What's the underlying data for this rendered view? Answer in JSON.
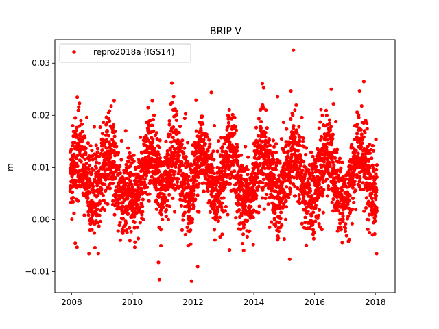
{
  "chart_data": {
    "type": "scatter",
    "title": "BRIP V",
    "xlabel": "",
    "ylabel": "m",
    "xlim": [
      2007.45,
      2018.65
    ],
    "ylim": [
      -0.014,
      0.0345
    ],
    "x_ticks": [
      2008,
      2010,
      2012,
      2014,
      2016,
      2018
    ],
    "x_tick_labels": [
      "2008",
      "2010",
      "2012",
      "2014",
      "2016",
      "2018"
    ],
    "y_ticks": [
      -0.01,
      0.0,
      0.01,
      0.02,
      0.03
    ],
    "y_tick_labels": [
      "−0.01",
      "0.00",
      "0.01",
      "0.02",
      "0.03"
    ],
    "legend": {
      "position": "top-left",
      "entries": [
        "repro2018a (IGS14)"
      ]
    },
    "grid": false,
    "series": [
      {
        "name": "repro2018a (IGS14)",
        "color": "#ff0000",
        "marker": "dot",
        "x_range": [
          2007.95,
          2018.05
        ],
        "annual_mean_pattern": {
          "peak_times": [
            2009.2,
            2010.6,
            2011.4,
            2012.3,
            2013.2,
            2014.3,
            2015.3,
            2016.4,
            2017.5
          ],
          "mean_level": 0.0085,
          "annual_amplitude": 0.004
        },
        "points": [
          [
            2008.01,
            0.0001
          ],
          [
            2008.03,
            0.0123
          ],
          [
            2008.05,
            0.0042
          ],
          [
            2008.08,
            0.0012
          ],
          [
            2008.12,
            -0.0045
          ],
          [
            2008.15,
            0.0062
          ],
          [
            2008.18,
            -0.0053
          ],
          [
            2008.22,
            0.0085
          ],
          [
            2008.26,
            0.0223
          ],
          [
            2008.3,
            0.014
          ],
          [
            2008.35,
            0.0096
          ],
          [
            2008.42,
            0.016
          ],
          [
            2008.5,
            0.0196
          ],
          [
            2008.58,
            0.0122
          ],
          [
            2008.66,
            0.0088
          ],
          [
            2008.75,
            0.0178
          ],
          [
            2008.85,
            0.0129
          ],
          [
            2008.95,
            0.008
          ],
          [
            2009.05,
            0.0101
          ],
          [
            2009.15,
            0.0153
          ],
          [
            2009.22,
            0.0205
          ],
          [
            2009.3,
            0.0178
          ],
          [
            2009.4,
            0.0228
          ],
          [
            2009.48,
            0.014
          ],
          [
            2009.55,
            0.0096
          ],
          [
            2009.62,
            0.0061
          ],
          [
            2009.7,
            0.0048
          ],
          [
            2009.78,
            -0.0003
          ],
          [
            2009.85,
            0.0012
          ],
          [
            2009.92,
            -0.004
          ],
          [
            2010.0,
            0.0025
          ],
          [
            2010.08,
            -0.0053
          ],
          [
            2010.15,
            0.0074
          ],
          [
            2010.22,
            0.011
          ],
          [
            2010.32,
            0.0128
          ],
          [
            2010.42,
            0.0152
          ],
          [
            2010.52,
            0.0215
          ],
          [
            2010.58,
            0.018
          ],
          [
            2010.65,
            0.014
          ],
          [
            2010.72,
            0.0068
          ],
          [
            2010.8,
            0.002
          ],
          [
            2010.86,
            -0.0082
          ],
          [
            2010.89,
            -0.0115
          ],
          [
            2010.94,
            -0.005
          ],
          [
            2011.0,
            0.003
          ],
          [
            2011.08,
            0.0092
          ],
          [
            2011.15,
            0.0126
          ],
          [
            2011.22,
            0.0182
          ],
          [
            2011.3,
            0.0262
          ],
          [
            2011.36,
            0.0236
          ],
          [
            2011.45,
            0.015
          ],
          [
            2011.55,
            0.0104
          ],
          [
            2011.65,
            0.0071
          ],
          [
            2011.75,
            0.0203
          ],
          [
            2011.82,
            0.0148
          ],
          [
            2011.88,
            0.0024
          ],
          [
            2011.92,
            -0.0047
          ],
          [
            2011.95,
            -0.0118
          ],
          [
            2012.02,
            0.006
          ],
          [
            2012.1,
            0.0229
          ],
          [
            2012.15,
            -0.009
          ],
          [
            2012.22,
            0.0168
          ],
          [
            2012.3,
            0.0198
          ],
          [
            2012.38,
            0.012
          ],
          [
            2012.48,
            0.0065
          ],
          [
            2012.55,
            0.0145
          ],
          [
            2012.6,
            0.0244
          ],
          [
            2012.7,
            0.018
          ],
          [
            2012.8,
            0.01
          ],
          [
            2012.9,
            0.0052
          ],
          [
            2013.0,
            0.0015
          ],
          [
            2013.1,
            0.0072
          ],
          [
            2013.2,
            -0.0058
          ],
          [
            2013.28,
            0.0132
          ],
          [
            2013.35,
            0.018
          ],
          [
            2013.45,
            0.0108
          ],
          [
            2013.55,
            0.006
          ],
          [
            2013.65,
            -0.0028
          ],
          [
            2013.72,
            0.014
          ],
          [
            2013.8,
            0.0096
          ],
          [
            2013.9,
            0.0036
          ],
          [
            2013.98,
            -0.0048
          ],
          [
            2014.05,
            0.008
          ],
          [
            2014.15,
            0.013
          ],
          [
            2014.22,
            0.0178
          ],
          [
            2014.28,
            0.0261
          ],
          [
            2014.32,
            0.0253
          ],
          [
            2014.4,
            0.021
          ],
          [
            2014.48,
            0.0125
          ],
          [
            2014.58,
            0.0062
          ],
          [
            2014.68,
            0.0002
          ],
          [
            2014.78,
            0.0236
          ],
          [
            2014.85,
            0.0112
          ],
          [
            2014.95,
            0.0052
          ],
          [
            2015.0,
            -0.0037
          ],
          [
            2015.1,
            0.0085
          ],
          [
            2015.18,
            -0.0076
          ],
          [
            2015.22,
            0.0247
          ],
          [
            2015.3,
            0.0325
          ],
          [
            2015.35,
            0.021
          ],
          [
            2015.42,
            0.0166
          ],
          [
            2015.5,
            0.0123
          ],
          [
            2015.58,
            0.0196
          ],
          [
            2015.65,
            0.014
          ],
          [
            2015.72,
            0.0094
          ],
          [
            2015.8,
            0.0045
          ],
          [
            2015.88,
            0.001
          ],
          [
            2015.95,
            -0.0028
          ],
          [
            2016.02,
            0.005
          ],
          [
            2016.1,
            0.0007
          ],
          [
            2016.18,
            -0.0014
          ],
          [
            2016.25,
            0.0085
          ],
          [
            2016.32,
            0.0155
          ],
          [
            2016.4,
            0.02
          ],
          [
            2016.48,
            0.017
          ],
          [
            2016.55,
            0.025
          ],
          [
            2016.62,
            0.0222
          ],
          [
            2016.7,
            0.0188
          ],
          [
            2016.78,
            0.0112
          ],
          [
            2016.86,
            0.006
          ],
          [
            2016.94,
            0.0019
          ],
          [
            2017.02,
            -0.0008
          ],
          [
            2017.1,
            0.005
          ],
          [
            2017.18,
            0.0102
          ],
          [
            2017.25,
            0.0138
          ],
          [
            2017.32,
            0.018
          ],
          [
            2017.4,
            0.0206
          ],
          [
            2017.48,
            0.0247
          ],
          [
            2017.55,
            0.0218
          ],
          [
            2017.62,
            0.0265
          ],
          [
            2017.68,
            0.019
          ],
          [
            2017.75,
            0.014
          ],
          [
            2017.82,
            0.0102
          ],
          [
            2017.9,
            0.0062
          ],
          [
            2017.96,
            0.002
          ],
          [
            2018.02,
            0.0154
          ],
          [
            2018.05,
            0.0105
          ]
        ]
      }
    ]
  }
}
